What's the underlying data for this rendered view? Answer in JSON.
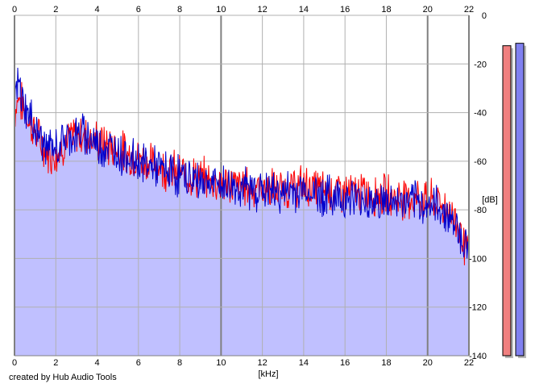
{
  "credit": "created by Hub Audio Tools",
  "chart_data": {
    "type": "area",
    "xlabel": "[kHz]",
    "ylabel": "[dB]",
    "xlim": [
      0,
      22
    ],
    "ylim": [
      -140,
      0
    ],
    "x_ticks": [
      "0",
      "2",
      "4",
      "6",
      "8",
      "10",
      "12",
      "14",
      "16",
      "18",
      "20",
      "22"
    ],
    "y_ticks": [
      "0",
      "-20",
      "-40",
      "-60",
      "-80",
      "-100",
      "-120",
      "-140"
    ],
    "grid": true,
    "x_tick_positions": "top and bottom",
    "y_tick_position": "right",
    "colors": {
      "plot_background": "#ffffff",
      "fill": "#c0c0ff",
      "grid": "#b0b0b0",
      "grid_major": "#808080",
      "red_series": "#ff0000",
      "blue_series": "#0000cc",
      "red_meter": "#f08080",
      "blue_meter": "#8080f0"
    },
    "series": [
      {
        "color": "#ff0000",
        "x": [
          0,
          0.2,
          0.5,
          1,
          1.5,
          2,
          2.5,
          3,
          3.5,
          4,
          5,
          6,
          7,
          8,
          9,
          10,
          11,
          12,
          13,
          14,
          15,
          16,
          17,
          18,
          19,
          20,
          20.5,
          21,
          21.5,
          22
        ],
        "y": [
          -40,
          -33,
          -40,
          -48,
          -56,
          -57,
          -52,
          -49,
          -49,
          -52,
          -55,
          -59,
          -62,
          -65,
          -67,
          -69,
          -70,
          -71,
          -72,
          -70,
          -72,
          -73,
          -73,
          -74,
          -75,
          -76,
          -77,
          -80,
          -86,
          -100
        ]
      },
      {
        "color": "#0000cc",
        "x": [
          0,
          0.2,
          0.5,
          1,
          1.5,
          2,
          2.5,
          3,
          3.5,
          4,
          5,
          6,
          7,
          8,
          9,
          10,
          11,
          12,
          13,
          14,
          15,
          16,
          17,
          18,
          19,
          20,
          20.5,
          21,
          21.5,
          22
        ],
        "y": [
          -35,
          -28,
          -38,
          -46,
          -54,
          -55,
          -50,
          -49,
          -49,
          -53,
          -56,
          -60,
          -63,
          -66,
          -68,
          -70,
          -71,
          -72,
          -73,
          -72,
          -74,
          -75,
          -76,
          -77,
          -77,
          -78,
          -79,
          -82,
          -88,
          -98
        ]
      }
    ],
    "meters": [
      {
        "color": "#f08080",
        "value": -12.5
      },
      {
        "color": "#8080f0",
        "value": -11.5
      }
    ]
  }
}
